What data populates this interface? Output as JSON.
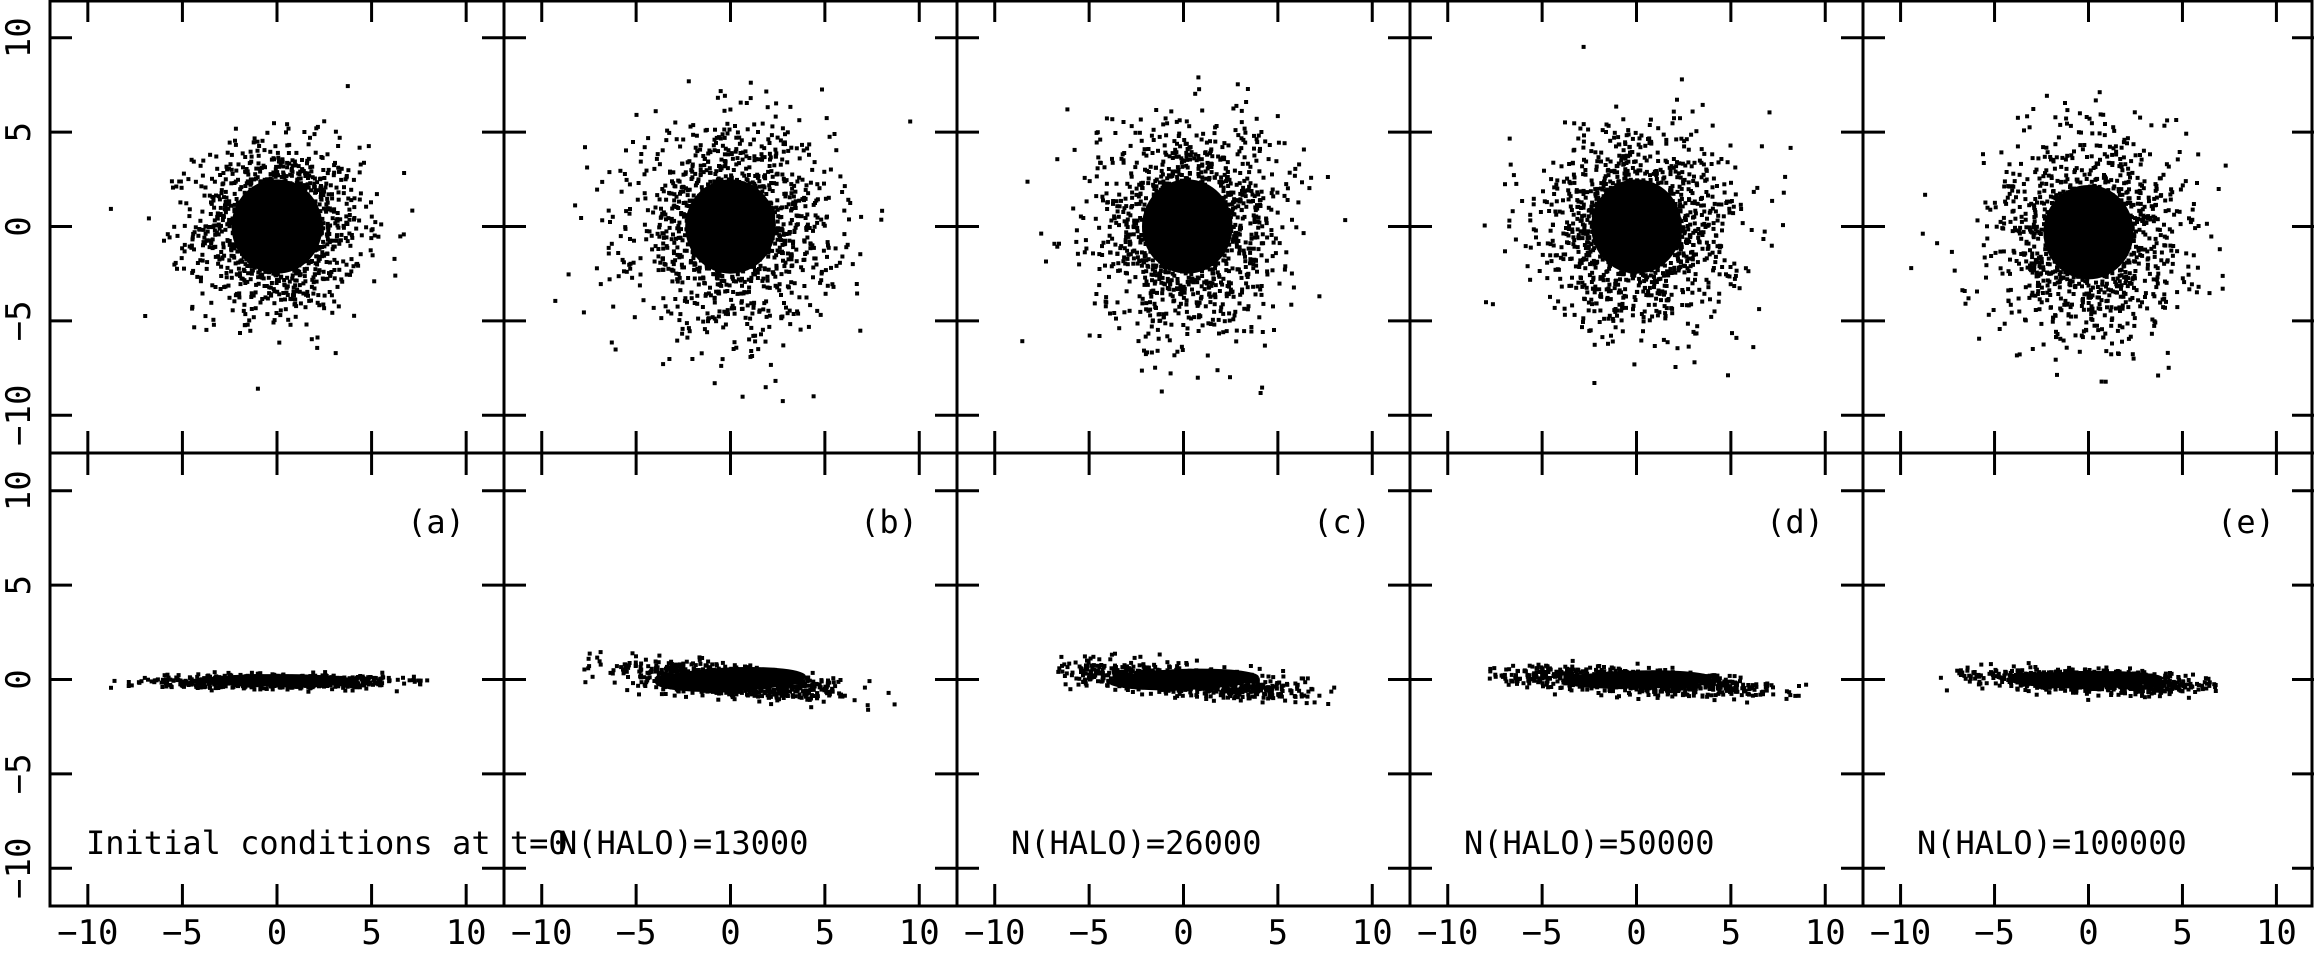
{
  "chart_data": {
    "type": "scatter",
    "layout": "2 rows x 5 columns of panels; top row face-on (x-y) projection, bottom row edge-on (x-z) projection",
    "grid": false,
    "xlim": [
      -12,
      12
    ],
    "ylim": [
      -12,
      12
    ],
    "x_ticks": [
      -10,
      -5,
      0,
      5,
      10
    ],
    "y_ticks": [
      -10,
      -5,
      0,
      5,
      10
    ],
    "x_tick_labels": [
      "−10",
      "−5",
      "0",
      "5",
      "10"
    ],
    "y_tick_labels": [
      "−10",
      "−5",
      "0",
      "5",
      "10"
    ],
    "marker_color": "#000000",
    "panels": [
      {
        "label": "(a)",
        "annotation": "Initial conditions at t=0",
        "top": {
          "center": [
            0.0,
            0.0
          ],
          "sigma_x": 2.2,
          "sigma_y": 2.2,
          "outer_extent": 9
        },
        "bottom": {
          "center": [
            0.0,
            0.0
          ],
          "sigma_x": 3.0,
          "sigma_z": 0.18,
          "x_range": [
            -9,
            8
          ],
          "tilt": 0.0
        }
      },
      {
        "label": "(b)",
        "annotation": "N(HALO)=13000",
        "top": {
          "center": [
            0.0,
            0.0
          ],
          "sigma_x": 2.6,
          "sigma_y": 2.6,
          "outer_extent": 10
        },
        "bottom": {
          "center": [
            0.0,
            0.0
          ],
          "sigma_x": 2.8,
          "sigma_z": 0.4,
          "x_range": [
            -8,
            9
          ],
          "tilt": -0.1
        }
      },
      {
        "label": "(c)",
        "annotation": "N(HALO)=26000",
        "top": {
          "center": [
            0.2,
            0.0
          ],
          "sigma_x": 2.5,
          "sigma_y": 2.7,
          "outer_extent": 10
        },
        "bottom": {
          "center": [
            0.0,
            0.0
          ],
          "sigma_x": 3.2,
          "sigma_z": 0.35,
          "x_range": [
            -7,
            8
          ],
          "tilt": -0.08
        }
      },
      {
        "label": "(d)",
        "annotation": "N(HALO)=50000",
        "top": {
          "center": [
            0.0,
            0.0
          ],
          "sigma_x": 2.5,
          "sigma_y": 2.5,
          "outer_extent": 10
        },
        "bottom": {
          "center": [
            0.0,
            0.0
          ],
          "sigma_x": 3.5,
          "sigma_z": 0.3,
          "x_range": [
            -8,
            9
          ],
          "tilt": -0.06
        }
      },
      {
        "label": "(e)",
        "annotation": "N(HALO)=100000",
        "top": {
          "center": [
            0.0,
            -0.3
          ],
          "sigma_x": 2.4,
          "sigma_y": 2.5,
          "outer_extent": 10
        },
        "bottom": {
          "center": [
            0.0,
            0.0
          ],
          "sigma_x": 3.0,
          "sigma_z": 0.28,
          "x_range": [
            -8,
            7
          ],
          "tilt": -0.04
        }
      }
    ]
  }
}
